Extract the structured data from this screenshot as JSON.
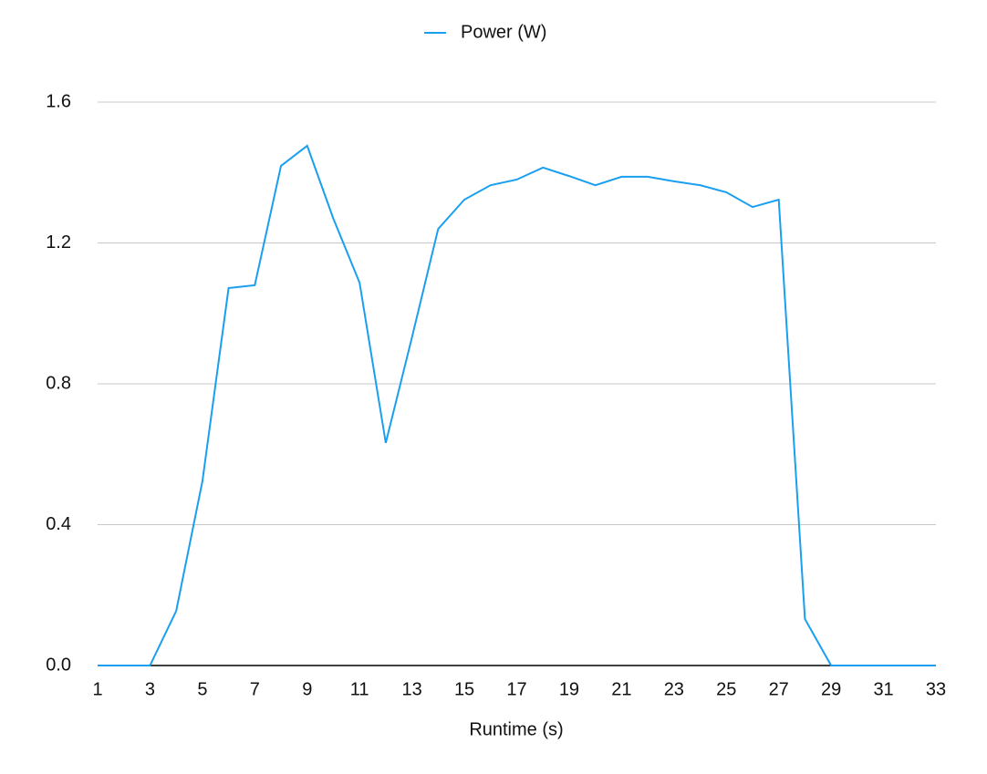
{
  "chart_data": {
    "type": "line",
    "x_label": "Runtime (s)",
    "legend_position": "top",
    "x": [
      1,
      2,
      3,
      4,
      5,
      6,
      7,
      8,
      9,
      10,
      11,
      12,
      13,
      14,
      15,
      16,
      17,
      18,
      19,
      20,
      21,
      22,
      23,
      24,
      25,
      26,
      27,
      28,
      29,
      30,
      31,
      32,
      33
    ],
    "series": [
      {
        "name": "Power (W)",
        "color": "#1a9ff0",
        "values": [
          0,
          0,
          0,
          0.155,
          0.523,
          1.072,
          1.08,
          1.419,
          1.476,
          1.269,
          1.087,
          0.632,
          0.932,
          1.24,
          1.323,
          1.364,
          1.38,
          1.414,
          1.39,
          1.364,
          1.388,
          1.388,
          1.375,
          1.364,
          1.344,
          1.302,
          1.323,
          0.132,
          0,
          0,
          0,
          0,
          0
        ]
      }
    ],
    "xlim": [
      1,
      33
    ],
    "xticks": [
      1,
      3,
      5,
      7,
      9,
      11,
      13,
      15,
      17,
      19,
      21,
      23,
      25,
      27,
      29,
      31,
      33
    ],
    "ylim": [
      0,
      1.6
    ],
    "yticks": [
      {
        "value": 0,
        "label": "0.0"
      },
      0.4,
      0.8,
      1.2,
      1.6
    ],
    "grid": true
  }
}
